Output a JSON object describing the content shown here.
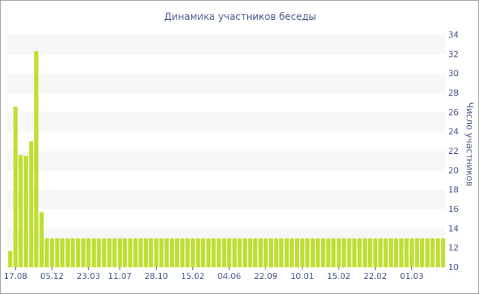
{
  "chart_data": {
    "type": "bar",
    "title": "Динамика участников беседы",
    "xlabel": "",
    "ylabel": "Число участников",
    "ylim": [
      10,
      34
    ],
    "y_ticks": [
      10,
      12,
      14,
      16,
      18,
      20,
      22,
      24,
      26,
      28,
      30,
      32,
      34
    ],
    "y_axis_side": "right",
    "grid": "horizontal bands",
    "bar_color": "#bede32",
    "band_color": "#f7f7f7",
    "x_tick_labels": [
      {
        "label": "17.08",
        "index": 1
      },
      {
        "label": "05.12",
        "index": 8
      },
      {
        "label": "23.03",
        "index": 15
      },
      {
        "label": "11.07",
        "index": 21
      },
      {
        "label": "28.10",
        "index": 28
      },
      {
        "label": "15.02",
        "index": 35
      },
      {
        "label": "04.06",
        "index": 42
      },
      {
        "label": "22.09",
        "index": 49
      },
      {
        "label": "10.01",
        "index": 56
      },
      {
        "label": "15.02",
        "index": 63
      },
      {
        "label": "22.02",
        "index": 70
      },
      {
        "label": "01.03",
        "index": 77
      }
    ],
    "values": [
      11.7,
      26.6,
      21.6,
      21.5,
      23.0,
      32.3,
      15.7,
      13,
      13,
      13,
      13,
      13,
      13,
      13,
      13,
      13,
      13,
      13,
      13,
      13,
      13,
      13,
      13,
      13,
      13,
      13,
      13,
      13,
      13,
      13,
      13,
      13,
      13,
      13,
      13,
      13,
      13,
      13,
      13,
      13,
      13,
      13,
      13,
      13,
      13,
      13,
      13,
      13,
      13,
      13,
      13,
      13,
      13,
      13,
      13,
      13,
      13,
      13,
      13,
      13,
      13,
      13,
      13,
      13,
      13,
      13,
      13,
      13,
      13,
      13,
      13,
      13,
      13,
      13,
      13,
      13,
      13,
      13,
      13,
      13,
      13,
      13,
      13,
      13
    ]
  }
}
